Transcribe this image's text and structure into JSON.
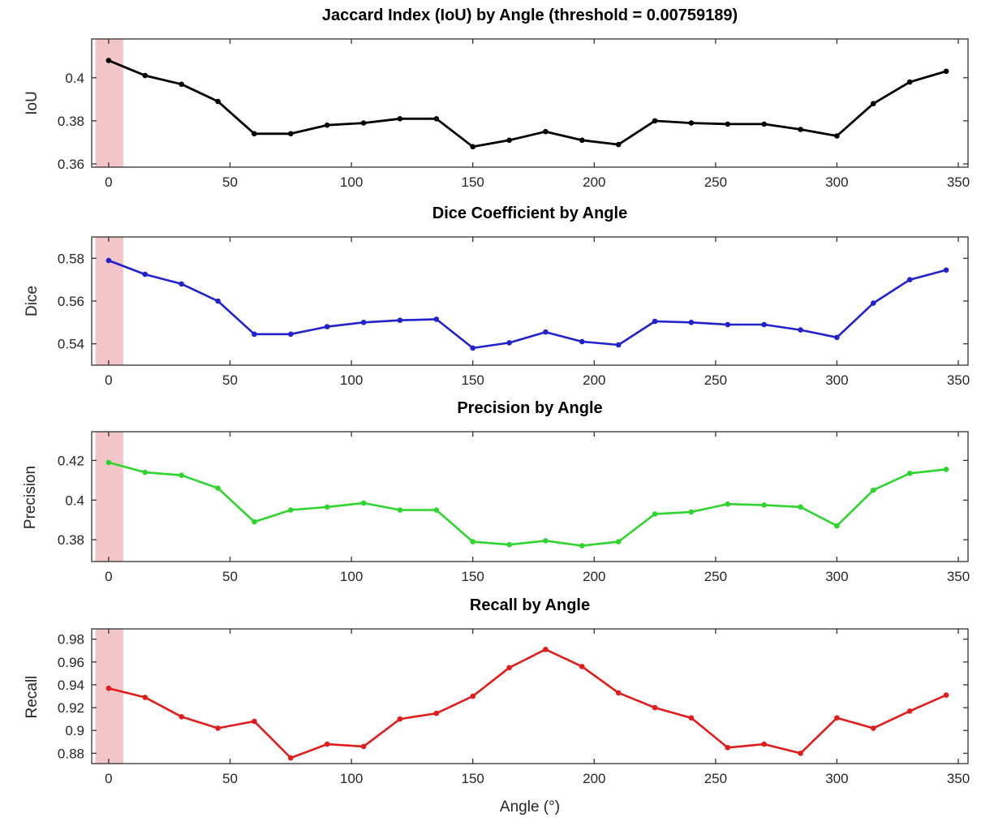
{
  "figure": {
    "background": "#ffffff",
    "text_color": "#262626"
  },
  "axis": {
    "xlabel": "Angle (°)",
    "xticks": [
      0,
      50,
      100,
      150,
      200,
      250,
      300,
      350
    ],
    "xtick_labels": [
      "0",
      "50",
      "100",
      "150",
      "200",
      "250",
      "300",
      "350"
    ],
    "xlim": [
      -7,
      354
    ],
    "axis_color": "#333333",
    "grid": false,
    "legend": "none",
    "highlight_band": {
      "from": -5.5,
      "to": 6,
      "color": "#f2c5c8"
    }
  },
  "chart_data": [
    {
      "type": "line",
      "title": "Jaccard Index (IoU) by Angle (threshold = 0.00759189)",
      "ylabel": "IoU",
      "color": "#000000",
      "marker": "circle",
      "x": [
        0,
        15,
        30,
        45,
        60,
        75,
        90,
        105,
        120,
        135,
        150,
        165,
        180,
        195,
        210,
        225,
        240,
        255,
        270,
        285,
        300,
        315,
        330,
        345
      ],
      "values": [
        0.408,
        0.401,
        0.397,
        0.389,
        0.374,
        0.374,
        0.378,
        0.379,
        0.381,
        0.381,
        0.368,
        0.371,
        0.375,
        0.371,
        0.369,
        0.38,
        0.379,
        0.3785,
        0.3785,
        0.376,
        0.373,
        0.388,
        0.398,
        0.403
      ],
      "ylim": [
        0.3585,
        0.418
      ],
      "ytick_values": [
        0.36,
        0.38,
        0.4
      ],
      "ytick_labels": [
        "0.36",
        "0.38",
        "0.4"
      ]
    },
    {
      "type": "line",
      "title": "Dice Coefficient by Angle",
      "ylabel": "Dice",
      "color": "#2121cd",
      "marker": "circle",
      "x": [
        0,
        15,
        30,
        45,
        60,
        75,
        90,
        105,
        120,
        135,
        150,
        165,
        180,
        195,
        210,
        225,
        240,
        255,
        270,
        285,
        300,
        315,
        330,
        345
      ],
      "values": [
        0.579,
        0.5725,
        0.568,
        0.56,
        0.5445,
        0.5445,
        0.548,
        0.55,
        0.551,
        0.5515,
        0.538,
        0.5405,
        0.5455,
        0.541,
        0.5395,
        0.5505,
        0.55,
        0.549,
        0.549,
        0.5465,
        0.543,
        0.559,
        0.57,
        0.5745
      ],
      "ylim": [
        0.53,
        0.59
      ],
      "ytick_values": [
        0.54,
        0.56,
        0.58
      ],
      "ytick_labels": [
        "0.54",
        "0.56",
        "0.58"
      ]
    },
    {
      "type": "line",
      "title": "Precision by Angle",
      "ylabel": "Precision",
      "color": "#2ed52e",
      "marker": "circle",
      "x": [
        0,
        15,
        30,
        45,
        60,
        75,
        90,
        105,
        120,
        135,
        150,
        165,
        180,
        195,
        210,
        225,
        240,
        255,
        270,
        285,
        300,
        315,
        330,
        345
      ],
      "values": [
        0.419,
        0.414,
        0.4125,
        0.406,
        0.389,
        0.395,
        0.3965,
        0.3985,
        0.395,
        0.395,
        0.379,
        0.3775,
        0.3795,
        0.377,
        0.379,
        0.393,
        0.394,
        0.398,
        0.3975,
        0.3965,
        0.387,
        0.405,
        0.4135,
        0.4155
      ],
      "ylim": [
        0.369,
        0.4345
      ],
      "ytick_values": [
        0.38,
        0.4,
        0.42
      ],
      "ytick_labels": [
        "0.38",
        "0.4",
        "0.42"
      ]
    },
    {
      "type": "line",
      "title": "Recall by Angle",
      "ylabel": "Recall",
      "color": "#e21b1b",
      "marker": "circle",
      "x": [
        0,
        15,
        30,
        45,
        60,
        75,
        90,
        105,
        120,
        135,
        150,
        165,
        180,
        195,
        210,
        225,
        240,
        255,
        270,
        285,
        300,
        315,
        330,
        345
      ],
      "values": [
        0.937,
        0.929,
        0.912,
        0.902,
        0.908,
        0.876,
        0.888,
        0.886,
        0.91,
        0.915,
        0.93,
        0.955,
        0.971,
        0.956,
        0.933,
        0.92,
        0.911,
        0.885,
        0.888,
        0.88,
        0.911,
        0.902,
        0.917,
        0.931
      ],
      "ylim": [
        0.871,
        0.989
      ],
      "ytick_values": [
        0.88,
        0.9,
        0.92,
        0.94,
        0.96,
        0.98
      ],
      "ytick_labels": [
        "0.88",
        "0.9",
        "0.92",
        "0.94",
        "0.96",
        "0.98"
      ]
    }
  ]
}
